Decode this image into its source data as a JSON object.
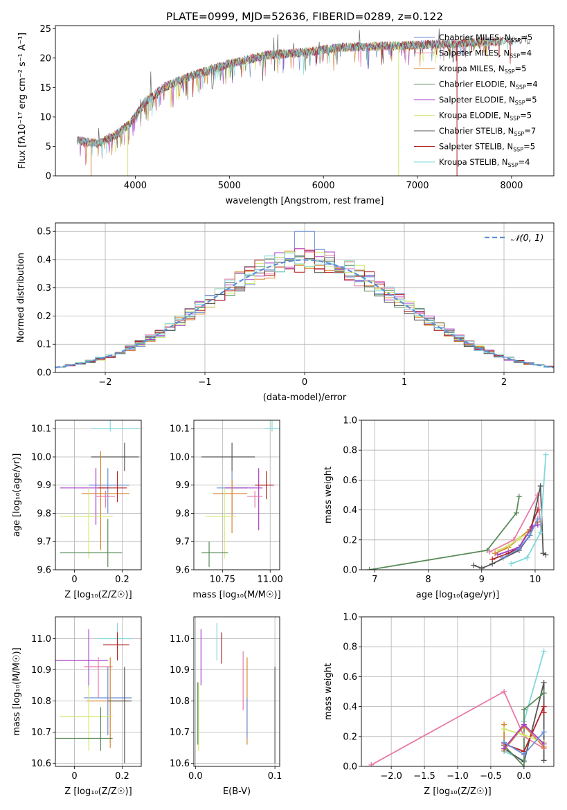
{
  "figure_title": "PLATE=0999, MJD=52636, FIBERID=0289, z=0.122",
  "colors": {
    "chabrier_miles": "#6a8fd6",
    "salpeter_miles": "#e87aa8",
    "kroupa_miles": "#d8832a",
    "chabrier_elodie": "#5a8a5a",
    "salpeter_elodie": "#a63fc6",
    "kroupa_elodie": "#cfe86a",
    "chabrier_stelib": "#555555",
    "salpeter_stelib": "#b22222",
    "kroupa_stelib": "#7fd8dc",
    "normal_fit": "#5b8fd6"
  },
  "chart_data": [
    {
      "id": "spectrum",
      "type": "line",
      "title": "PLATE=0999, MJD=52636, FIBERID=0289, z=0.122",
      "xlabel": "wavelength [Angstrom, rest frame]",
      "ylabel": "Flux [fλ10⁻¹⁷ erg cm⁻² s⁻¹ A⁻¹]",
      "xlim": [
        3150,
        8450
      ],
      "ylim": [
        0,
        25.5
      ],
      "xticks": [
        4000,
        5000,
        6000,
        7000,
        8000
      ],
      "yticks": [
        0,
        5,
        10,
        15,
        20,
        25
      ],
      "legend_position": "top-right",
      "legend": [
        {
          "label": "Chabrier MILES, N",
          "sub": "SSP",
          "tail": "=5",
          "color": "chabrier_miles"
        },
        {
          "label": "Salpeter MILES, N",
          "sub": "SSP",
          "tail": "=4",
          "color": "salpeter_miles"
        },
        {
          "label": "Kroupa MILES, N",
          "sub": "SSP",
          "tail": "=5",
          "color": "kroupa_miles"
        },
        {
          "label": "Chabrier ELODIE, N",
          "sub": "SSP",
          "tail": "=4",
          "color": "chabrier_elodie"
        },
        {
          "label": "Salpeter ELODIE, N",
          "sub": "SSP",
          "tail": "=5",
          "color": "salpeter_elodie"
        },
        {
          "label": "Kroupa ELODIE, N",
          "sub": "SSP",
          "tail": "=5",
          "color": "kroupa_elodie"
        },
        {
          "label": "Chabrier STELIB, N",
          "sub": "SSP",
          "tail": "=7",
          "color": "chabrier_stelib"
        },
        {
          "label": "Salpeter STELIB, N",
          "sub": "SSP",
          "tail": "=5",
          "color": "salpeter_stelib"
        },
        {
          "label": "Kroupa STELIB, N",
          "sub": "SSP",
          "tail": "=4",
          "color": "kroupa_stelib"
        }
      ],
      "continuum_x": [
        3380,
        3600,
        3800,
        3950,
        4100,
        4300,
        4600,
        5000,
        5400,
        5800,
        6200,
        6600,
        7000,
        7400,
        7800,
        8200
      ],
      "continuum_y": [
        6.0,
        5.5,
        7.0,
        9.0,
        12.5,
        15.0,
        17.0,
        19.0,
        20.5,
        21.0,
        21.8,
        22.0,
        22.2,
        22.5,
        22.8,
        23.0
      ],
      "dropouts": [
        {
          "x": 3530,
          "series": "kroupa_miles"
        },
        {
          "x": 3920,
          "series": "kroupa_elodie"
        },
        {
          "x": 6800,
          "series": "kroupa_elodie"
        },
        {
          "x": 7420,
          "series": "salpeter_stelib"
        }
      ]
    },
    {
      "id": "residual_histogram",
      "type": "histogram",
      "xlabel": "(data-model)/error",
      "ylabel": "Normed distribution",
      "xlim": [
        -2.5,
        2.5
      ],
      "ylim": [
        0,
        0.53
      ],
      "xticks": [
        -2,
        -1,
        0,
        1,
        2
      ],
      "yticks": [
        0.0,
        0.1,
        0.2,
        0.3,
        0.4,
        0.5
      ],
      "grid": true,
      "legend_position": "top-right",
      "legend": [
        {
          "label": "𝒩(0, 1)",
          "color": "normal_fit",
          "style": "dashed"
        }
      ],
      "bin_width": 0.1,
      "series_count": 9
    },
    {
      "id": "age_vs_Z",
      "type": "errorbar",
      "xlabel": "Z [log₁₀(Z/Z☉)]",
      "ylabel": "age  [log₁₀(age/yr)]",
      "xlim": [
        -0.08,
        0.28
      ],
      "ylim": [
        9.6,
        10.13
      ],
      "xticks": [
        0.0,
        0.2
      ],
      "yticks": [
        9.6,
        9.7,
        9.8,
        9.9,
        10.0,
        10.1
      ],
      "grid": true,
      "points": [
        {
          "x": 0.15,
          "y": 10.1,
          "dx": [
            0.08,
            0.12
          ],
          "dy": [
            0.01,
            0.05
          ],
          "color": "kroupa_stelib"
        },
        {
          "x": 0.21,
          "y": 10.0,
          "dx": [
            0.14,
            0.06
          ],
          "dy": [
            0.05,
            0.05
          ],
          "color": "chabrier_stelib"
        },
        {
          "x": 0.14,
          "y": 9.9,
          "dx": [
            0.08,
            0.09
          ],
          "dy": [
            0.1,
            0.06
          ],
          "color": "chabrier_miles"
        },
        {
          "x": 0.09,
          "y": 9.89,
          "dx": [
            0.15,
            0.05
          ],
          "dy": [
            0.13,
            0.07
          ],
          "color": "salpeter_elodie"
        },
        {
          "x": 0.11,
          "y": 9.87,
          "dx": [
            0.08,
            0.12
          ],
          "dy": [
            0.2,
            0.15
          ],
          "color": "kroupa_miles"
        },
        {
          "x": 0.18,
          "y": 9.89,
          "dx": [
            0.08,
            0.04
          ],
          "dy": [
            0.05,
            0.06
          ],
          "color": "salpeter_stelib"
        },
        {
          "x": 0.13,
          "y": 9.86,
          "dx": [
            0.04,
            0.04
          ],
          "dy": [
            0.04,
            0.02
          ],
          "color": "salpeter_miles"
        },
        {
          "x": 0.06,
          "y": 9.79,
          "dx": [
            0.12,
            0.1
          ],
          "dy": [
            0.15,
            0.1
          ],
          "color": "kroupa_elodie"
        },
        {
          "x": 0.14,
          "y": 9.66,
          "dx": [
            0.2,
            0.06
          ],
          "dy": [
            0.05,
            0.12
          ],
          "color": "chabrier_elodie"
        }
      ]
    },
    {
      "id": "age_vs_mass",
      "type": "errorbar",
      "xlabel": "mass [log₁₀(M/M☉)]",
      "ylabel": "",
      "xlim": [
        10.6,
        11.05
      ],
      "ylim": [
        9.6,
        10.13
      ],
      "xticks": [
        10.75,
        11.0
      ],
      "xtick_labels": [
        "10.75",
        "11.00"
      ],
      "yticks": [
        9.6,
        9.7,
        9.8,
        9.9,
        10.0,
        10.1
      ],
      "grid": true,
      "points": [
        {
          "x": 11.01,
          "y": 10.1,
          "dx": [
            0.04,
            0.04
          ],
          "dy": [
            0.01,
            0.08
          ],
          "color": "kroupa_stelib"
        },
        {
          "x": 10.8,
          "y": 10.0,
          "dx": [
            0.16,
            0.12
          ],
          "dy": [
            0.05,
            0.05
          ],
          "color": "chabrier_stelib"
        },
        {
          "x": 10.8,
          "y": 9.89,
          "dx": [
            0.08,
            0.08
          ],
          "dy": [
            0.1,
            0.06
          ],
          "color": "chabrier_miles"
        },
        {
          "x": 10.94,
          "y": 9.89,
          "dx": [
            0.18,
            0.02
          ],
          "dy": [
            0.15,
            0.07
          ],
          "color": "salpeter_elodie"
        },
        {
          "x": 10.8,
          "y": 9.87,
          "dx": [
            0.1,
            0.08
          ],
          "dy": [
            0.14,
            0.05
          ],
          "color": "kroupa_miles"
        },
        {
          "x": 10.98,
          "y": 9.9,
          "dx": [
            0.06,
            0.04
          ],
          "dy": [
            0.05,
            0.05
          ],
          "color": "salpeter_stelib"
        },
        {
          "x": 10.92,
          "y": 9.86,
          "dx": [
            0.04,
            0.04
          ],
          "dy": [
            0.04,
            0.02
          ],
          "color": "salpeter_miles"
        },
        {
          "x": 10.76,
          "y": 9.79,
          "dx": [
            0.1,
            0.06
          ],
          "dy": [
            0.15,
            0.1
          ],
          "color": "kroupa_elodie"
        },
        {
          "x": 10.68,
          "y": 9.66,
          "dx": [
            0.04,
            0.1
          ],
          "dy": [
            0.05,
            0.04
          ],
          "color": "chabrier_elodie"
        }
      ]
    },
    {
      "id": "massweight_vs_age",
      "type": "line",
      "xlabel": "age  [log₁₀(age/yr)]",
      "ylabel": "mass weight",
      "xlim": [
        6.75,
        10.35
      ],
      "ylim": [
        0,
        1.0
      ],
      "xticks": [
        7,
        8,
        9,
        10
      ],
      "yticks": [
        0.0,
        0.2,
        0.4,
        0.6,
        0.8,
        1.0
      ],
      "grid": true,
      "series": [
        {
          "color": "chabrier_elodie",
          "x": [
            6.9,
            9.1,
            9.65,
            9.7
          ],
          "y": [
            0.0,
            0.13,
            0.38,
            0.49
          ]
        },
        {
          "color": "salpeter_miles",
          "x": [
            9.15,
            9.6,
            10.05,
            10.1
          ],
          "y": [
            0.12,
            0.2,
            0.5,
            0.3
          ]
        },
        {
          "color": "chabrier_stelib",
          "x": [
            8.85,
            9.0,
            9.2,
            9.7,
            9.9,
            10.1,
            10.15,
            10.2
          ],
          "y": [
            0.03,
            0.01,
            0.04,
            0.13,
            0.23,
            0.56,
            0.11,
            0.1
          ]
        },
        {
          "color": "kroupa_stelib",
          "x": [
            9.55,
            9.85,
            10.1,
            10.2
          ],
          "y": [
            0.04,
            0.08,
            0.25,
            0.77
          ]
        },
        {
          "color": "salpeter_stelib",
          "x": [
            9.2,
            9.5,
            9.7,
            9.9,
            10.05
          ],
          "y": [
            0.07,
            0.11,
            0.15,
            0.27,
            0.4
          ]
        },
        {
          "color": "kroupa_miles",
          "x": [
            9.25,
            9.5,
            9.9,
            10.05
          ],
          "y": [
            0.11,
            0.15,
            0.27,
            0.32
          ]
        },
        {
          "color": "kroupa_elodie",
          "x": [
            9.3,
            9.5,
            9.7,
            9.9
          ],
          "y": [
            0.13,
            0.16,
            0.21,
            0.25
          ]
        },
        {
          "color": "salpeter_elodie",
          "x": [
            9.3,
            9.7,
            9.95,
            10.05
          ],
          "y": [
            0.1,
            0.15,
            0.29,
            0.3
          ]
        },
        {
          "color": "chabrier_miles",
          "x": [
            9.4,
            9.7,
            9.9,
            10.05
          ],
          "y": [
            0.08,
            0.14,
            0.23,
            0.34
          ]
        }
      ]
    },
    {
      "id": "mass_vs_Z",
      "type": "errorbar",
      "xlabel": "Z [log₁₀(Z/Z☉)]",
      "ylabel": "mass [log₁₀(M/M☉)]",
      "xlim": [
        -0.08,
        0.28
      ],
      "ylim": [
        10.59,
        11.07
      ],
      "xticks": [
        0.0,
        0.2
      ],
      "yticks": [
        10.6,
        10.7,
        10.8,
        10.9,
        11.0
      ],
      "grid": true,
      "points": [
        {
          "x": 0.18,
          "y": 11.0,
          "dx": [
            0.08,
            0.06
          ],
          "dy": [
            0.07,
            0.05
          ],
          "color": "kroupa_stelib"
        },
        {
          "x": 0.18,
          "y": 10.98,
          "dx": [
            0.06,
            0.05
          ],
          "dy": [
            0.05,
            0.04
          ],
          "color": "salpeter_stelib"
        },
        {
          "x": 0.06,
          "y": 10.93,
          "dx": [
            0.14,
            0.08
          ],
          "dy": [
            0.09,
            0.1
          ],
          "color": "salpeter_elodie"
        },
        {
          "x": 0.1,
          "y": 10.91,
          "dx": [
            0.06,
            0.06
          ],
          "dy": [
            0.1,
            0.03
          ],
          "color": "salpeter_miles"
        },
        {
          "x": 0.14,
          "y": 10.81,
          "dx": [
            0.1,
            0.1
          ],
          "dy": [
            0.12,
            0.1
          ],
          "color": "chabrier_miles"
        },
        {
          "x": 0.15,
          "y": 10.8,
          "dx": [
            0.1,
            0.08
          ],
          "dy": [
            0.15,
            0.14
          ],
          "color": "kroupa_miles"
        },
        {
          "x": 0.21,
          "y": 10.8,
          "dx": [
            0.07,
            0.03
          ],
          "dy": [
            0.2,
            0.11
          ],
          "color": "chabrier_stelib"
        },
        {
          "x": 0.06,
          "y": 10.75,
          "dx": [
            0.12,
            0.1
          ],
          "dy": [
            0.11,
            0.1
          ],
          "color": "kroupa_elodie"
        },
        {
          "x": 0.11,
          "y": 10.68,
          "dx": [
            0.19,
            0.05
          ],
          "dy": [
            0.04,
            0.1
          ],
          "color": "chabrier_elodie"
        }
      ]
    },
    {
      "id": "mass_vs_ebv",
      "type": "errorbar",
      "xlabel": "E(B-V)",
      "ylabel": "",
      "xlim": [
        -0.002,
        0.106
      ],
      "ylim": [
        10.59,
        11.07
      ],
      "xticks": [
        0.0,
        0.1
      ],
      "xtick_labels": [
        "0.0",
        "0.1"
      ],
      "yticks": [
        10.6,
        10.7,
        10.8,
        10.9,
        11.0
      ],
      "grid": true,
      "points": [
        {
          "x": 0.027,
          "y": 11.0,
          "dx": [
            0,
            0
          ],
          "dy": [
            0.07,
            0.05
          ],
          "color": "kroupa_stelib"
        },
        {
          "x": 0.033,
          "y": 10.98,
          "dx": [
            0,
            0
          ],
          "dy": [
            0.06,
            0.04
          ],
          "color": "salpeter_stelib"
        },
        {
          "x": 0.007,
          "y": 10.93,
          "dx": [
            0,
            0
          ],
          "dy": [
            0.08,
            0.1
          ],
          "color": "salpeter_elodie"
        },
        {
          "x": 0.06,
          "y": 10.87,
          "dx": [
            0,
            0
          ],
          "dy": [
            0.1,
            0.09
          ],
          "color": "salpeter_miles"
        },
        {
          "x": 0.065,
          "y": 10.8,
          "dx": [
            0,
            0
          ],
          "dy": [
            0.14,
            0.14
          ],
          "color": "kroupa_miles"
        },
        {
          "x": 0.1,
          "y": 10.8,
          "dx": [
            0,
            0
          ],
          "dy": [
            0.2,
            0.11
          ],
          "color": "chabrier_stelib"
        },
        {
          "x": 0.065,
          "y": 10.75,
          "dx": [
            0,
            0
          ],
          "dy": [
            0.07,
            0.06
          ],
          "color": "chabrier_miles"
        },
        {
          "x": 0.004,
          "y": 10.75,
          "dx": [
            0,
            0
          ],
          "dy": [
            0.11,
            0.11
          ],
          "color": "kroupa_elodie"
        },
        {
          "x": 0.003,
          "y": 10.76,
          "dx": [
            0,
            0
          ],
          "dy": [
            0.1,
            0.1
          ],
          "color": "chabrier_elodie"
        }
      ]
    },
    {
      "id": "massweight_vs_Z",
      "type": "line",
      "xlabel": "Z [log₁₀(Z/Z☉)]",
      "ylabel": "mass weight",
      "xlim": [
        -2.45,
        0.45
      ],
      "ylim": [
        0,
        1.0
      ],
      "xticks": [
        -2.0,
        -1.5,
        -1.0,
        -0.5,
        0.0
      ],
      "xtick_labels": [
        "−2.0",
        "−1.5",
        "−1.0",
        "−0.5",
        "0.0"
      ],
      "yticks": [
        0.0,
        0.2,
        0.4,
        0.6,
        0.8,
        1.0
      ],
      "grid": true,
      "series": [
        {
          "color": "salpeter_miles",
          "x": [
            -2.3,
            -0.3,
            0.0,
            0.3
          ],
          "y": [
            0.01,
            0.5,
            0.2,
            0.12
          ]
        },
        {
          "color": "kroupa_stelib",
          "x": [
            -0.3,
            0.0,
            0.0,
            0.3
          ],
          "y": [
            0.1,
            0.04,
            0.3,
            0.77
          ]
        },
        {
          "color": "chabrier_stelib",
          "x": [
            -0.3,
            0.0,
            0.3,
            0.3
          ],
          "y": [
            0.12,
            0.03,
            0.56,
            0.04
          ]
        },
        {
          "color": "chabrier_elodie",
          "x": [
            -0.3,
            0.0,
            0.0,
            0.3
          ],
          "y": [
            0.14,
            0.0,
            0.38,
            0.49
          ]
        },
        {
          "color": "salpeter_stelib",
          "x": [
            -0.3,
            0.0,
            0.3,
            0.3
          ],
          "y": [
            0.15,
            0.1,
            0.4,
            0.36
          ]
        },
        {
          "color": "kroupa_miles",
          "x": [
            -0.3,
            -0.3,
            0.0,
            0.3
          ],
          "y": [
            0.28,
            0.11,
            0.27,
            0.13
          ]
        },
        {
          "color": "kroupa_elodie",
          "x": [
            -0.3,
            0.0,
            0.3
          ],
          "y": [
            0.25,
            0.21,
            0.16
          ]
        },
        {
          "color": "salpeter_elodie",
          "x": [
            -0.3,
            0.0,
            0.3
          ],
          "y": [
            0.12,
            0.28,
            0.15
          ]
        },
        {
          "color": "chabrier_miles",
          "x": [
            -0.3,
            0.0,
            0.3
          ],
          "y": [
            0.16,
            0.08,
            0.23
          ]
        }
      ]
    }
  ]
}
